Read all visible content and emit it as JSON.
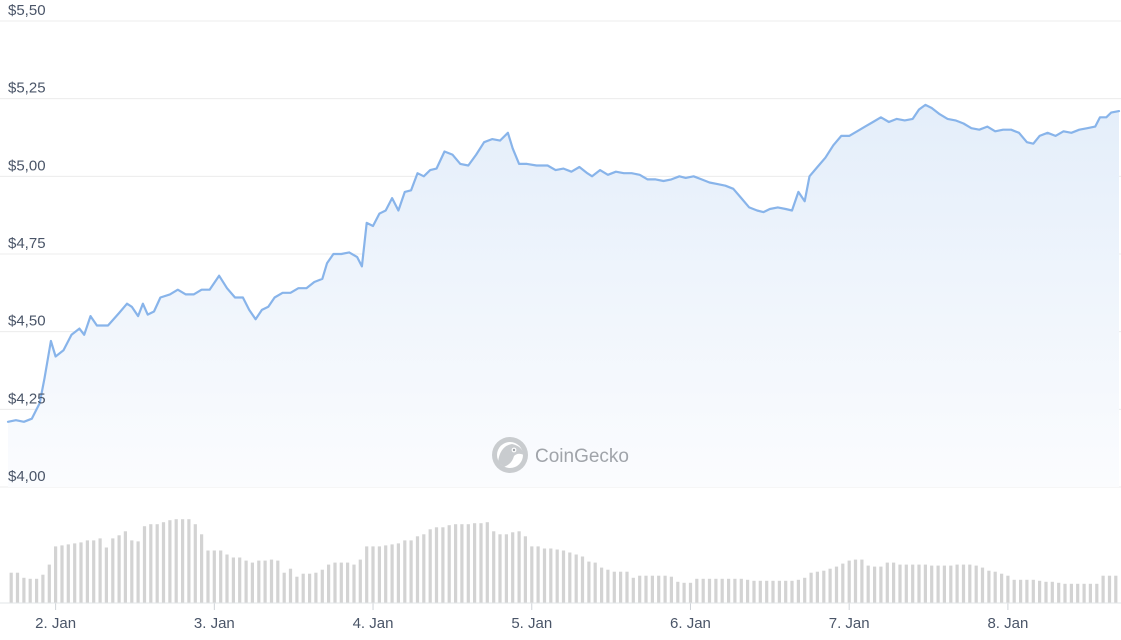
{
  "chart_data": {
    "type": "area",
    "watermark": "CoinGecko",
    "y_axis": {
      "ticks": [
        4.0,
        4.25,
        4.5,
        4.75,
        5.0,
        5.25,
        5.5
      ],
      "tick_labels": [
        "$4,00",
        "$4,25",
        "$4,50",
        "$4,75",
        "$5,00",
        "$5,25",
        "$5,50"
      ],
      "ylim": [
        4.0,
        5.5
      ]
    },
    "x_axis": {
      "xlim_days": [
        1.7,
        8.7
      ],
      "ticks": [
        2,
        3,
        4,
        5,
        6,
        7,
        8
      ],
      "tick_labels": [
        "2. Jan",
        "3. Jan",
        "4. Jan",
        "5. Jan",
        "6. Jan",
        "7. Jan",
        "8. Jan"
      ]
    },
    "grid": true,
    "price": [
      [
        1.7,
        4.21
      ],
      [
        1.75,
        4.215
      ],
      [
        1.8,
        4.21
      ],
      [
        1.85,
        4.22
      ],
      [
        1.9,
        4.27
      ],
      [
        1.93,
        4.35
      ],
      [
        1.97,
        4.47
      ],
      [
        2.0,
        4.42
      ],
      [
        2.05,
        4.44
      ],
      [
        2.1,
        4.49
      ],
      [
        2.15,
        4.51
      ],
      [
        2.18,
        4.49
      ],
      [
        2.22,
        4.55
      ],
      [
        2.26,
        4.52
      ],
      [
        2.33,
        4.52
      ],
      [
        2.4,
        4.56
      ],
      [
        2.45,
        4.59
      ],
      [
        2.48,
        4.58
      ],
      [
        2.52,
        4.55
      ],
      [
        2.55,
        4.59
      ],
      [
        2.58,
        4.555
      ],
      [
        2.62,
        4.565
      ],
      [
        2.66,
        4.61
      ],
      [
        2.72,
        4.62
      ],
      [
        2.77,
        4.635
      ],
      [
        2.82,
        4.62
      ],
      [
        2.87,
        4.62
      ],
      [
        2.92,
        4.635
      ],
      [
        2.97,
        4.635
      ],
      [
        3.03,
        4.68
      ],
      [
        3.08,
        4.64
      ],
      [
        3.13,
        4.61
      ],
      [
        3.18,
        4.61
      ],
      [
        3.22,
        4.57
      ],
      [
        3.26,
        4.54
      ],
      [
        3.3,
        4.57
      ],
      [
        3.34,
        4.58
      ],
      [
        3.38,
        4.61
      ],
      [
        3.43,
        4.625
      ],
      [
        3.48,
        4.625
      ],
      [
        3.53,
        4.64
      ],
      [
        3.58,
        4.64
      ],
      [
        3.63,
        4.66
      ],
      [
        3.68,
        4.67
      ],
      [
        3.71,
        4.72
      ],
      [
        3.75,
        4.75
      ],
      [
        3.8,
        4.75
      ],
      [
        3.85,
        4.755
      ],
      [
        3.9,
        4.74
      ],
      [
        3.93,
        4.71
      ],
      [
        3.96,
        4.85
      ],
      [
        4.0,
        4.84
      ],
      [
        4.04,
        4.88
      ],
      [
        4.08,
        4.89
      ],
      [
        4.12,
        4.93
      ],
      [
        4.16,
        4.89
      ],
      [
        4.2,
        4.95
      ],
      [
        4.24,
        4.955
      ],
      [
        4.28,
        5.01
      ],
      [
        4.32,
        5.0
      ],
      [
        4.36,
        5.02
      ],
      [
        4.4,
        5.025
      ],
      [
        4.45,
        5.08
      ],
      [
        4.5,
        5.07
      ],
      [
        4.55,
        5.04
      ],
      [
        4.6,
        5.035
      ],
      [
        4.65,
        5.07
      ],
      [
        4.7,
        5.11
      ],
      [
        4.75,
        5.12
      ],
      [
        4.8,
        5.115
      ],
      [
        4.85,
        5.14
      ],
      [
        4.88,
        5.09
      ],
      [
        4.92,
        5.04
      ],
      [
        4.97,
        5.04
      ],
      [
        5.03,
        5.035
      ],
      [
        5.1,
        5.035
      ],
      [
        5.15,
        5.02
      ],
      [
        5.2,
        5.025
      ],
      [
        5.25,
        5.015
      ],
      [
        5.3,
        5.03
      ],
      [
        5.35,
        5.01
      ],
      [
        5.38,
        5.0
      ],
      [
        5.43,
        5.02
      ],
      [
        5.48,
        5.005
      ],
      [
        5.53,
        5.015
      ],
      [
        5.58,
        5.01
      ],
      [
        5.63,
        5.01
      ],
      [
        5.68,
        5.005
      ],
      [
        5.73,
        4.99
      ],
      [
        5.78,
        4.99
      ],
      [
        5.83,
        4.985
      ],
      [
        5.88,
        4.99
      ],
      [
        5.93,
        5.0
      ],
      [
        5.97,
        4.995
      ],
      [
        6.02,
        5.0
      ],
      [
        6.07,
        4.99
      ],
      [
        6.12,
        4.98
      ],
      [
        6.17,
        4.975
      ],
      [
        6.22,
        4.97
      ],
      [
        6.27,
        4.96
      ],
      [
        6.32,
        4.93
      ],
      [
        6.37,
        4.9
      ],
      [
        6.42,
        4.89
      ],
      [
        6.46,
        4.885
      ],
      [
        6.5,
        4.895
      ],
      [
        6.55,
        4.9
      ],
      [
        6.6,
        4.895
      ],
      [
        6.64,
        4.89
      ],
      [
        6.68,
        4.95
      ],
      [
        6.72,
        4.92
      ],
      [
        6.75,
        5.0
      ],
      [
        6.8,
        5.03
      ],
      [
        6.85,
        5.06
      ],
      [
        6.9,
        5.1
      ],
      [
        6.95,
        5.13
      ],
      [
        7.0,
        5.13
      ],
      [
        7.05,
        5.145
      ],
      [
        7.1,
        5.16
      ],
      [
        7.15,
        5.175
      ],
      [
        7.2,
        5.19
      ],
      [
        7.25,
        5.175
      ],
      [
        7.3,
        5.185
      ],
      [
        7.35,
        5.18
      ],
      [
        7.4,
        5.185
      ],
      [
        7.44,
        5.215
      ],
      [
        7.48,
        5.23
      ],
      [
        7.52,
        5.22
      ],
      [
        7.57,
        5.2
      ],
      [
        7.62,
        5.185
      ],
      [
        7.67,
        5.18
      ],
      [
        7.72,
        5.17
      ],
      [
        7.77,
        5.155
      ],
      [
        7.82,
        5.15
      ],
      [
        7.87,
        5.16
      ],
      [
        7.92,
        5.145
      ],
      [
        7.97,
        5.15
      ],
      [
        8.02,
        5.15
      ],
      [
        8.07,
        5.14
      ],
      [
        8.12,
        5.11
      ],
      [
        8.16,
        5.105
      ],
      [
        8.2,
        5.13
      ],
      [
        8.25,
        5.14
      ],
      [
        8.3,
        5.13
      ],
      [
        8.35,
        5.145
      ],
      [
        8.4,
        5.14
      ],
      [
        8.45,
        5.15
      ],
      [
        8.5,
        5.155
      ],
      [
        8.55,
        5.16
      ],
      [
        8.58,
        5.19
      ],
      [
        8.62,
        5.19
      ],
      [
        8.65,
        5.205
      ],
      [
        8.7,
        5.21
      ]
    ],
    "volume_bars": [
      [
        1.72,
        0.3
      ],
      [
        1.76,
        0.3
      ],
      [
        1.8,
        0.25
      ],
      [
        1.84,
        0.24
      ],
      [
        1.88,
        0.24
      ],
      [
        1.92,
        0.28
      ],
      [
        1.96,
        0.38
      ],
      [
        2.0,
        0.56
      ],
      [
        2.04,
        0.57
      ],
      [
        2.08,
        0.58
      ],
      [
        2.12,
        0.59
      ],
      [
        2.16,
        0.6
      ],
      [
        2.2,
        0.62
      ],
      [
        2.24,
        0.62
      ],
      [
        2.28,
        0.64
      ],
      [
        2.32,
        0.55
      ],
      [
        2.36,
        0.64
      ],
      [
        2.4,
        0.67
      ],
      [
        2.44,
        0.71
      ],
      [
        2.48,
        0.62
      ],
      [
        2.52,
        0.61
      ],
      [
        2.56,
        0.76
      ],
      [
        2.6,
        0.78
      ],
      [
        2.64,
        0.78
      ],
      [
        2.68,
        0.8
      ],
      [
        2.72,
        0.82
      ],
      [
        2.76,
        0.83
      ],
      [
        2.8,
        0.83
      ],
      [
        2.84,
        0.83
      ],
      [
        2.88,
        0.78
      ],
      [
        2.92,
        0.68
      ],
      [
        2.96,
        0.52
      ],
      [
        3.0,
        0.52
      ],
      [
        3.04,
        0.52
      ],
      [
        3.08,
        0.48
      ],
      [
        3.12,
        0.45
      ],
      [
        3.16,
        0.45
      ],
      [
        3.2,
        0.42
      ],
      [
        3.24,
        0.4
      ],
      [
        3.28,
        0.42
      ],
      [
        3.32,
        0.42
      ],
      [
        3.36,
        0.43
      ],
      [
        3.4,
        0.42
      ],
      [
        3.44,
        0.3
      ],
      [
        3.48,
        0.34
      ],
      [
        3.52,
        0.26
      ],
      [
        3.56,
        0.29
      ],
      [
        3.6,
        0.29
      ],
      [
        3.64,
        0.3
      ],
      [
        3.68,
        0.33
      ],
      [
        3.72,
        0.38
      ],
      [
        3.76,
        0.4
      ],
      [
        3.8,
        0.4
      ],
      [
        3.84,
        0.4
      ],
      [
        3.88,
        0.38
      ],
      [
        3.92,
        0.43
      ],
      [
        3.96,
        0.56
      ],
      [
        4.0,
        0.56
      ],
      [
        4.04,
        0.56
      ],
      [
        4.08,
        0.57
      ],
      [
        4.12,
        0.58
      ],
      [
        4.16,
        0.59
      ],
      [
        4.2,
        0.62
      ],
      [
        4.24,
        0.62
      ],
      [
        4.28,
        0.66
      ],
      [
        4.32,
        0.68
      ],
      [
        4.36,
        0.73
      ],
      [
        4.4,
        0.75
      ],
      [
        4.44,
        0.75
      ],
      [
        4.48,
        0.77
      ],
      [
        4.52,
        0.78
      ],
      [
        4.56,
        0.78
      ],
      [
        4.6,
        0.78
      ],
      [
        4.64,
        0.79
      ],
      [
        4.68,
        0.79
      ],
      [
        4.72,
        0.8
      ],
      [
        4.76,
        0.71
      ],
      [
        4.8,
        0.68
      ],
      [
        4.84,
        0.68
      ],
      [
        4.88,
        0.7
      ],
      [
        4.92,
        0.71
      ],
      [
        4.96,
        0.66
      ],
      [
        5.0,
        0.56
      ],
      [
        5.04,
        0.56
      ],
      [
        5.08,
        0.54
      ],
      [
        5.12,
        0.54
      ],
      [
        5.16,
        0.53
      ],
      [
        5.2,
        0.52
      ],
      [
        5.24,
        0.5
      ],
      [
        5.28,
        0.48
      ],
      [
        5.32,
        0.46
      ],
      [
        5.36,
        0.41
      ],
      [
        5.4,
        0.4
      ],
      [
        5.44,
        0.35
      ],
      [
        5.48,
        0.33
      ],
      [
        5.52,
        0.31
      ],
      [
        5.56,
        0.31
      ],
      [
        5.6,
        0.31
      ],
      [
        5.64,
        0.25
      ],
      [
        5.68,
        0.27
      ],
      [
        5.72,
        0.27
      ],
      [
        5.76,
        0.27
      ],
      [
        5.8,
        0.27
      ],
      [
        5.84,
        0.27
      ],
      [
        5.88,
        0.26
      ],
      [
        5.92,
        0.21
      ],
      [
        5.96,
        0.2
      ],
      [
        6.0,
        0.2
      ],
      [
        6.04,
        0.24
      ],
      [
        6.08,
        0.24
      ],
      [
        6.12,
        0.24
      ],
      [
        6.16,
        0.24
      ],
      [
        6.2,
        0.24
      ],
      [
        6.24,
        0.24
      ],
      [
        6.28,
        0.24
      ],
      [
        6.32,
        0.24
      ],
      [
        6.36,
        0.23
      ],
      [
        6.4,
        0.22
      ],
      [
        6.44,
        0.22
      ],
      [
        6.48,
        0.22
      ],
      [
        6.52,
        0.22
      ],
      [
        6.56,
        0.22
      ],
      [
        6.6,
        0.22
      ],
      [
        6.64,
        0.22
      ],
      [
        6.68,
        0.23
      ],
      [
        6.72,
        0.25
      ],
      [
        6.76,
        0.3
      ],
      [
        6.8,
        0.31
      ],
      [
        6.84,
        0.32
      ],
      [
        6.88,
        0.34
      ],
      [
        6.92,
        0.36
      ],
      [
        6.96,
        0.39
      ],
      [
        7.0,
        0.42
      ],
      [
        7.04,
        0.43
      ],
      [
        7.08,
        0.43
      ],
      [
        7.12,
        0.37
      ],
      [
        7.16,
        0.36
      ],
      [
        7.2,
        0.36
      ],
      [
        7.24,
        0.4
      ],
      [
        7.28,
        0.4
      ],
      [
        7.32,
        0.38
      ],
      [
        7.36,
        0.38
      ],
      [
        7.4,
        0.38
      ],
      [
        7.44,
        0.38
      ],
      [
        7.48,
        0.38
      ],
      [
        7.52,
        0.37
      ],
      [
        7.56,
        0.37
      ],
      [
        7.6,
        0.37
      ],
      [
        7.64,
        0.37
      ],
      [
        7.68,
        0.38
      ],
      [
        7.72,
        0.38
      ],
      [
        7.76,
        0.38
      ],
      [
        7.8,
        0.37
      ],
      [
        7.84,
        0.35
      ],
      [
        7.88,
        0.32
      ],
      [
        7.92,
        0.31
      ],
      [
        7.96,
        0.29
      ],
      [
        8.0,
        0.27
      ],
      [
        8.04,
        0.23
      ],
      [
        8.08,
        0.23
      ],
      [
        8.12,
        0.23
      ],
      [
        8.16,
        0.23
      ],
      [
        8.2,
        0.22
      ],
      [
        8.24,
        0.21
      ],
      [
        8.28,
        0.21
      ],
      [
        8.32,
        0.2
      ],
      [
        8.36,
        0.19
      ],
      [
        8.4,
        0.19
      ],
      [
        8.44,
        0.19
      ],
      [
        8.48,
        0.19
      ],
      [
        8.52,
        0.19
      ],
      [
        8.56,
        0.19
      ],
      [
        8.6,
        0.27
      ],
      [
        8.64,
        0.27
      ],
      [
        8.68,
        0.27
      ]
    ],
    "colors": {
      "line": "#88b4ea",
      "area_top": "#e4eefa",
      "area_bottom": "#fbfcfe",
      "grid": "#ececec",
      "volume": "#d3d3d3",
      "watermark": "#b4b8bd"
    }
  }
}
